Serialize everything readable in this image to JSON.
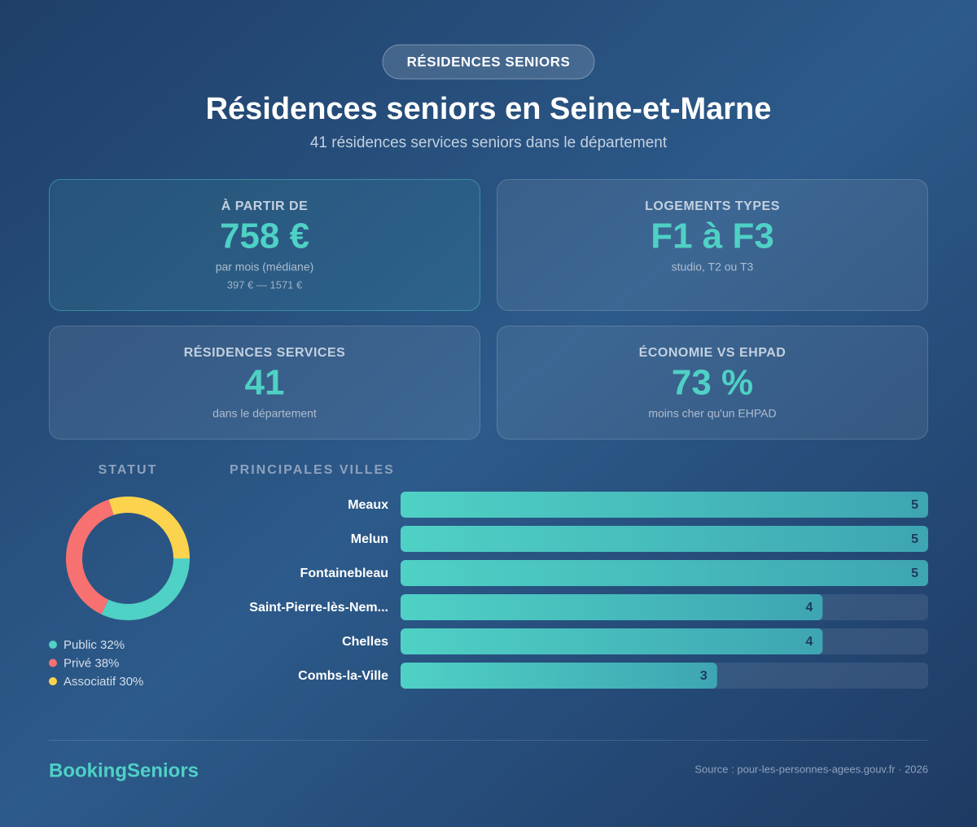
{
  "badge": "RÉSIDENCES SENIORS",
  "header": {
    "title": "Résidences seniors en Seine-et-Marne",
    "subtitle": "41 résidences services seniors dans le département"
  },
  "cards": [
    {
      "label": "À PARTIR DE",
      "value": "758 €",
      "note": "par mois (médiane)",
      "range": "397 € — 1571 €"
    },
    {
      "label": "LOGEMENTS TYPES",
      "value": "F1 à F3",
      "note": "studio, T2 ou T3"
    },
    {
      "label": "RÉSIDENCES SERVICES",
      "value": "41",
      "note": "dans le département"
    },
    {
      "label": "ÉCONOMIE VS EHPAD",
      "value": "73 %",
      "note": "moins cher qu'un EHPAD"
    }
  ],
  "chart_data": [
    {
      "type": "donut",
      "title": "STATUT",
      "categories": [
        "Public",
        "Privé",
        "Associatif"
      ],
      "values": [
        32,
        38,
        30
      ],
      "value_labels": [
        "32%",
        "38%",
        "30%"
      ],
      "colors": [
        "#4fd1c5",
        "#f87171",
        "#fcd34d"
      ]
    },
    {
      "type": "bar",
      "title": "PRINCIPALES VILLES",
      "categories": [
        "Meaux",
        "Melun",
        "Fontainebleau",
        "Saint-Pierre-lès-Nem...",
        "Chelles",
        "Combs-la-Ville"
      ],
      "values": [
        5,
        5,
        5,
        4,
        4,
        3
      ],
      "xlim": [
        0,
        5
      ],
      "color": "#4fd1c5"
    }
  ],
  "footer": {
    "brand": "BookingSeniors",
    "source": "Source : pour-les-personnes-agees.gouv.fr · 2026"
  }
}
